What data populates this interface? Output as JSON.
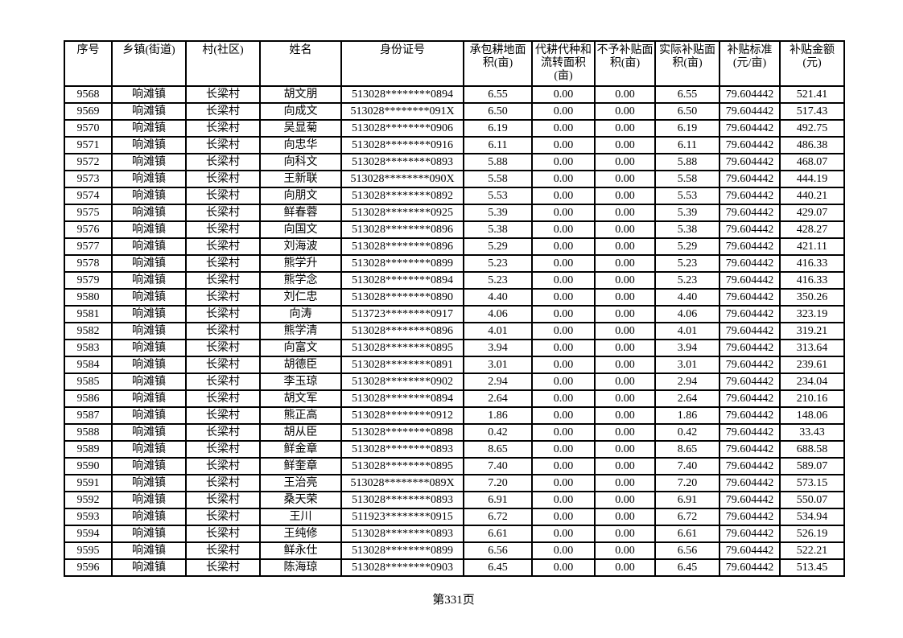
{
  "page": {
    "footer_label": "第331页"
  },
  "table": {
    "columns": [
      "序号",
      "乡镇(街道)",
      "村(社区)",
      "姓名",
      "身份证号",
      "承包耕地面\n积(亩)",
      "代耕代种和\n流转面积\n(亩)",
      "不予补贴面\n积(亩)",
      "实际补贴面\n积(亩)",
      "补贴标准\n(元/亩)",
      "补贴金额\n(元)"
    ],
    "rows": [
      [
        "9568",
        "响滩镇",
        "长梁村",
        "胡文朋",
        "513028********0894",
        "6.55",
        "0.00",
        "0.00",
        "6.55",
        "79.604442",
        "521.41"
      ],
      [
        "9569",
        "响滩镇",
        "长梁村",
        "向成文",
        "513028********091X",
        "6.50",
        "0.00",
        "0.00",
        "6.50",
        "79.604442",
        "517.43"
      ],
      [
        "9570",
        "响滩镇",
        "长梁村",
        "吴显菊",
        "513028********0906",
        "6.19",
        "0.00",
        "0.00",
        "6.19",
        "79.604442",
        "492.75"
      ],
      [
        "9571",
        "响滩镇",
        "长梁村",
        "向忠华",
        "513028********0916",
        "6.11",
        "0.00",
        "0.00",
        "6.11",
        "79.604442",
        "486.38"
      ],
      [
        "9572",
        "响滩镇",
        "长梁村",
        "向科文",
        "513028********0893",
        "5.88",
        "0.00",
        "0.00",
        "5.88",
        "79.604442",
        "468.07"
      ],
      [
        "9573",
        "响滩镇",
        "长梁村",
        "王新联",
        "513028********090X",
        "5.58",
        "0.00",
        "0.00",
        "5.58",
        "79.604442",
        "444.19"
      ],
      [
        "9574",
        "响滩镇",
        "长梁村",
        "向朋文",
        "513028********0892",
        "5.53",
        "0.00",
        "0.00",
        "5.53",
        "79.604442",
        "440.21"
      ],
      [
        "9575",
        "响滩镇",
        "长梁村",
        "鲜春蓉",
        "513028********0925",
        "5.39",
        "0.00",
        "0.00",
        "5.39",
        "79.604442",
        "429.07"
      ],
      [
        "9576",
        "响滩镇",
        "长梁村",
        "向国文",
        "513028********0896",
        "5.38",
        "0.00",
        "0.00",
        "5.38",
        "79.604442",
        "428.27"
      ],
      [
        "9577",
        "响滩镇",
        "长梁村",
        "刘海波",
        "513028********0896",
        "5.29",
        "0.00",
        "0.00",
        "5.29",
        "79.604442",
        "421.11"
      ],
      [
        "9578",
        "响滩镇",
        "长梁村",
        "熊学升",
        "513028********0899",
        "5.23",
        "0.00",
        "0.00",
        "5.23",
        "79.604442",
        "416.33"
      ],
      [
        "9579",
        "响滩镇",
        "长梁村",
        "熊学念",
        "513028********0894",
        "5.23",
        "0.00",
        "0.00",
        "5.23",
        "79.604442",
        "416.33"
      ],
      [
        "9580",
        "响滩镇",
        "长梁村",
        "刘仁忠",
        "513028********0890",
        "4.40",
        "0.00",
        "0.00",
        "4.40",
        "79.604442",
        "350.26"
      ],
      [
        "9581",
        "响滩镇",
        "长梁村",
        "向涛",
        "513723********0917",
        "4.06",
        "0.00",
        "0.00",
        "4.06",
        "79.604442",
        "323.19"
      ],
      [
        "9582",
        "响滩镇",
        "长梁村",
        "熊学清",
        "513028********0896",
        "4.01",
        "0.00",
        "0.00",
        "4.01",
        "79.604442",
        "319.21"
      ],
      [
        "9583",
        "响滩镇",
        "长梁村",
        "向富文",
        "513028********0895",
        "3.94",
        "0.00",
        "0.00",
        "3.94",
        "79.604442",
        "313.64"
      ],
      [
        "9584",
        "响滩镇",
        "长梁村",
        "胡德臣",
        "513028********0891",
        "3.01",
        "0.00",
        "0.00",
        "3.01",
        "79.604442",
        "239.61"
      ],
      [
        "9585",
        "响滩镇",
        "长梁村",
        "李玉琼",
        "513028********0902",
        "2.94",
        "0.00",
        "0.00",
        "2.94",
        "79.604442",
        "234.04"
      ],
      [
        "9586",
        "响滩镇",
        "长梁村",
        "胡文军",
        "513028********0894",
        "2.64",
        "0.00",
        "0.00",
        "2.64",
        "79.604442",
        "210.16"
      ],
      [
        "9587",
        "响滩镇",
        "长梁村",
        "熊正高",
        "513028********0912",
        "1.86",
        "0.00",
        "0.00",
        "1.86",
        "79.604442",
        "148.06"
      ],
      [
        "9588",
        "响滩镇",
        "长梁村",
        "胡从臣",
        "513028********0898",
        "0.42",
        "0.00",
        "0.00",
        "0.42",
        "79.604442",
        "33.43"
      ],
      [
        "9589",
        "响滩镇",
        "长梁村",
        "鲜金章",
        "513028********0893",
        "8.65",
        "0.00",
        "0.00",
        "8.65",
        "79.604442",
        "688.58"
      ],
      [
        "9590",
        "响滩镇",
        "长梁村",
        "鲜奎章",
        "513028********0895",
        "7.40",
        "0.00",
        "0.00",
        "7.40",
        "79.604442",
        "589.07"
      ],
      [
        "9591",
        "响滩镇",
        "长梁村",
        "王治亮",
        "513028********089X",
        "7.20",
        "0.00",
        "0.00",
        "7.20",
        "79.604442",
        "573.15"
      ],
      [
        "9592",
        "响滩镇",
        "长梁村",
        "桑天荣",
        "513028********0893",
        "6.91",
        "0.00",
        "0.00",
        "6.91",
        "79.604442",
        "550.07"
      ],
      [
        "9593",
        "响滩镇",
        "长梁村",
        "王川",
        "511923********0915",
        "6.72",
        "0.00",
        "0.00",
        "6.72",
        "79.604442",
        "534.94"
      ],
      [
        "9594",
        "响滩镇",
        "长梁村",
        "王纯修",
        "513028********0893",
        "6.61",
        "0.00",
        "0.00",
        "6.61",
        "79.604442",
        "526.19"
      ],
      [
        "9595",
        "响滩镇",
        "长梁村",
        "鲜永仕",
        "513028********0899",
        "6.56",
        "0.00",
        "0.00",
        "6.56",
        "79.604442",
        "522.21"
      ],
      [
        "9596",
        "响滩镇",
        "长梁村",
        "陈海琼",
        "513028********0903",
        "6.45",
        "0.00",
        "0.00",
        "6.45",
        "79.604442",
        "513.45"
      ]
    ]
  }
}
